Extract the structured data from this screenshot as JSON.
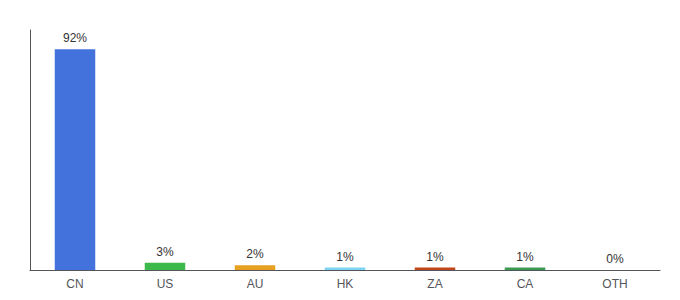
{
  "chart_data": {
    "type": "bar",
    "categories": [
      "CN",
      "US",
      "AU",
      "HK",
      "ZA",
      "CA",
      "OTH"
    ],
    "values": [
      92,
      3,
      2,
      1,
      1,
      1,
      0
    ],
    "value_labels": [
      "92%",
      "3%",
      "2%",
      "1%",
      "1%",
      "1%",
      "0%"
    ],
    "colors": [
      "#4472dd",
      "#3db84a",
      "#e8a020",
      "#7dd4f0",
      "#c0451a",
      "#3a9a50",
      "#aaaaaa"
    ],
    "ylim": [
      0,
      100
    ],
    "grid": false,
    "data_labels": true,
    "tick_labels": "x"
  }
}
